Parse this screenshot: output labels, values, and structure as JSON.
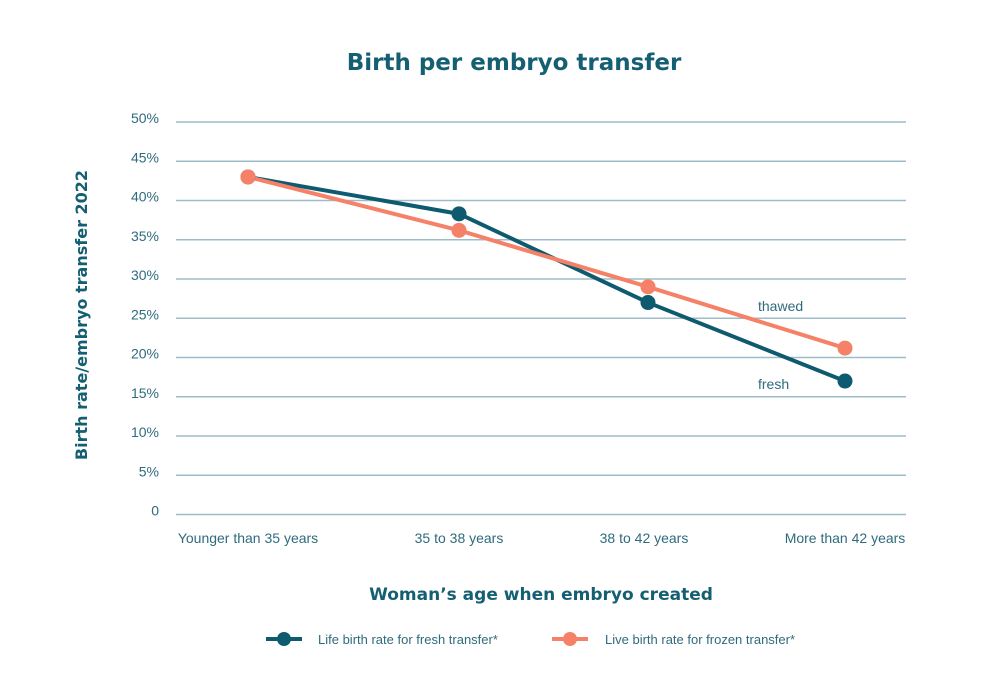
{
  "chart_data": {
    "type": "line",
    "title": "Birth per embryo transfer",
    "xlabel": "Woman’s age when embryo created",
    "ylabel": "Birth rate/embryo transfer 2022",
    "categories": [
      "Younger than 35 years",
      "35 to 38 years",
      "38 to 42 years",
      "More than 42 years"
    ],
    "ylim": [
      0,
      50
    ],
    "yticks": [
      0,
      5,
      10,
      15,
      20,
      25,
      30,
      35,
      40,
      45,
      50
    ],
    "ytick_labels": [
      "0",
      "5%",
      "10%",
      "15%",
      "20%",
      "25%",
      "30%",
      "35%",
      "40%",
      "45%",
      "50%"
    ],
    "grid": true,
    "legend_position": "bottom-center",
    "series": [
      {
        "name": "Life birth rate for fresh transfer*",
        "color": "#0e5a6e",
        "values": [
          43,
          38.3,
          27,
          17
        ],
        "annotation": "fresh"
      },
      {
        "name": "Live birth rate for frozen transfer*",
        "color": "#f58268",
        "values": [
          43,
          36.2,
          29,
          21.2
        ],
        "annotation": "thawed"
      }
    ]
  }
}
